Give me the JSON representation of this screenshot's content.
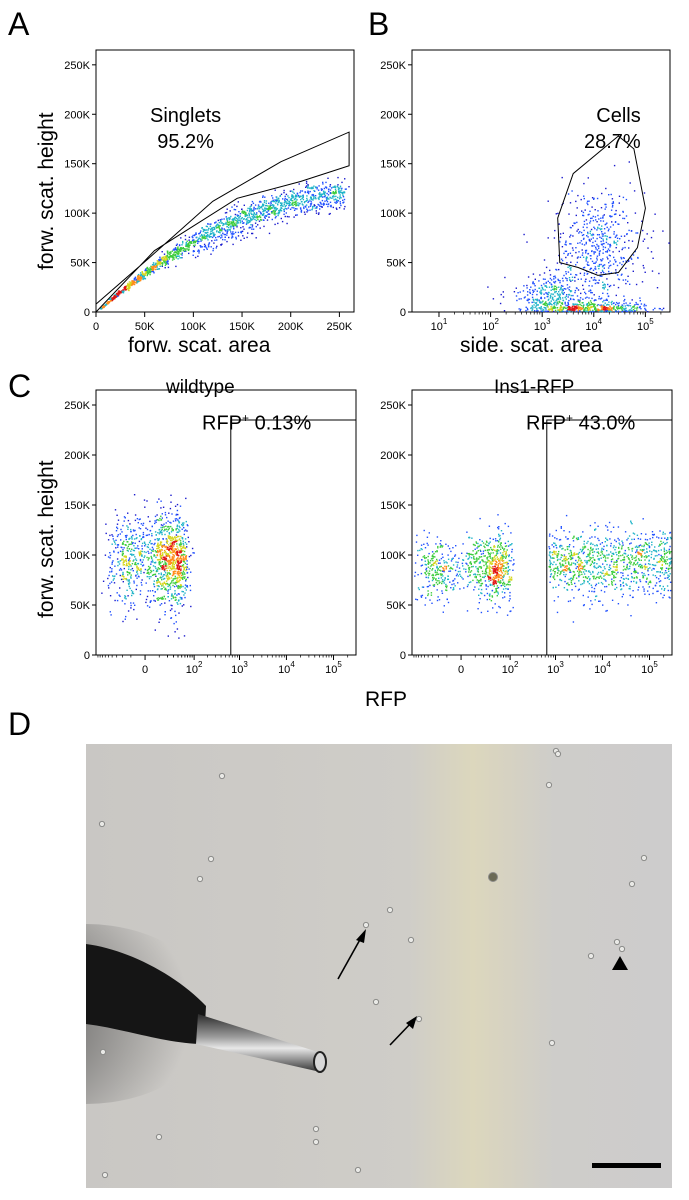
{
  "panel_labels": {
    "a": "A",
    "b": "B",
    "c": "C",
    "d": "D"
  },
  "shared_axis_label": "RFP",
  "chart_data": [
    {
      "id": "A",
      "type": "scatter",
      "title": "",
      "xlabel": "forw. scat. area",
      "ylabel": "forw. scat. height",
      "x_scale": "linear",
      "xlim": [
        0,
        265000
      ],
      "ylim": [
        0,
        265000
      ],
      "x_ticks": [
        0,
        50000,
        100000,
        150000,
        200000,
        250000
      ],
      "x_tick_labels": [
        "0",
        "50K",
        "100K",
        "150K",
        "200K",
        "250K"
      ],
      "y_ticks": [
        0,
        50000,
        100000,
        150000,
        200000,
        250000
      ],
      "y_tick_labels": [
        "0",
        "50K",
        "100K",
        "150K",
        "200K",
        "250K"
      ],
      "gate": {
        "name": "Singlets",
        "percent": "95.2%",
        "polygon": [
          [
            0,
            0
          ],
          [
            60000,
            62000
          ],
          [
            145000,
            115000
          ],
          [
            210000,
            132000
          ],
          [
            260000,
            148000
          ],
          [
            260000,
            182000
          ],
          [
            190000,
            152000
          ],
          [
            120000,
            112000
          ],
          [
            55000,
            55000
          ],
          [
            0,
            8000
          ]
        ]
      },
      "populations": [
        {
          "shape": "band",
          "x_range": [
            4000,
            255000
          ],
          "slope": 0.88,
          "curve": 1.6e-06,
          "spread": 0.06,
          "count": 1600
        },
        {
          "shape": "band",
          "x_range": [
            100000,
            260000
          ],
          "slope": 0.64,
          "curve": 6e-07,
          "spread": 0.05,
          "count": 120
        }
      ]
    },
    {
      "id": "B",
      "type": "scatter",
      "title": "",
      "xlabel": "side. scat. area",
      "ylabel": "",
      "x_scale": "log",
      "xlim": [
        3,
        300000
      ],
      "ylim": [
        0,
        265000
      ],
      "x_ticks": [
        10,
        100,
        1000,
        10000,
        100000
      ],
      "x_tick_labels": [
        "10",
        "10",
        "10",
        "10",
        "10"
      ],
      "x_tick_exponents": [
        "1",
        "2",
        "3",
        "4",
        "5"
      ],
      "y_ticks": [
        0,
        50000,
        100000,
        150000,
        200000,
        250000
      ],
      "y_tick_labels": [
        "0",
        "50K",
        "100K",
        "150K",
        "200K",
        "250K"
      ],
      "gate": {
        "name": "Cells",
        "percent": "28.7%",
        "polygon": [
          [
            2200,
            50000
          ],
          [
            2000,
            95000
          ],
          [
            4000,
            140000
          ],
          [
            30000,
            178000
          ],
          [
            60000,
            165000
          ],
          [
            100000,
            105000
          ],
          [
            70000,
            65000
          ],
          [
            30000,
            40000
          ],
          [
            12000,
            37000
          ],
          [
            5000,
            45000
          ]
        ]
      },
      "populations": [
        {
          "shape": "blob",
          "center": [
            8000,
            3000
          ],
          "sd": [
            0.55,
            4000
          ],
          "count": 650
        },
        {
          "shape": "blob",
          "center": [
            12000,
            65000
          ],
          "sd": [
            0.45,
            30000
          ],
          "count": 550
        },
        {
          "shape": "blob",
          "center": [
            1500,
            18000
          ],
          "sd": [
            0.45,
            10000
          ],
          "count": 300
        }
      ]
    },
    {
      "id": "C-wildtype",
      "type": "scatter",
      "title": "wildtype",
      "xlabel": "RFP",
      "ylabel": "forw. scat. height",
      "x_scale": "biexponential",
      "xlim": [
        -100,
        300000
      ],
      "ylim": [
        0,
        265000
      ],
      "x_ticks": [
        0,
        100,
        1000,
        10000,
        100000
      ],
      "x_tick_labels": [
        "0",
        "10",
        "10",
        "10",
        "10"
      ],
      "x_tick_exponents": [
        "",
        "2",
        "3",
        "4",
        "5"
      ],
      "y_ticks": [
        0,
        50000,
        100000,
        150000,
        200000,
        250000
      ],
      "y_tick_labels": [
        "0",
        "50K",
        "100K",
        "150K",
        "200K",
        "250K"
      ],
      "gate": {
        "name": "RFP",
        "sup": "+",
        "percent": "0.13%",
        "x_from": 650
      },
      "populations": [
        {
          "shape": "blob",
          "center": [
            15,
            95000
          ],
          "sd": [
            25,
            22000
          ],
          "count": 1300
        }
      ]
    },
    {
      "id": "C-Ins1-RFP",
      "type": "scatter",
      "title": "Ins1-RFP",
      "xlabel": "RFP",
      "ylabel": "",
      "x_scale": "biexponential",
      "xlim": [
        -100,
        300000
      ],
      "ylim": [
        0,
        265000
      ],
      "x_ticks": [
        0,
        100,
        1000,
        10000,
        100000
      ],
      "x_tick_labels": [
        "0",
        "10",
        "10",
        "10",
        "10"
      ],
      "x_tick_exponents": [
        "",
        "2",
        "3",
        "4",
        "5"
      ],
      "y_ticks": [
        0,
        50000,
        100000,
        150000,
        200000,
        250000
      ],
      "y_tick_labels": [
        "0",
        "50K",
        "100K",
        "150K",
        "200K",
        "250K"
      ],
      "gate": {
        "name": "RFP",
        "sup": "+",
        "percent": "43.0%",
        "x_from": 650
      },
      "populations": [
        {
          "shape": "blob",
          "center": [
            20,
            88000
          ],
          "sd": [
            40,
            16000
          ],
          "count": 850
        },
        {
          "shape": "uniform_log",
          "x_range": [
            700,
            300000
          ],
          "y_center": 92000,
          "y_sd": 17000,
          "count": 1000
        }
      ]
    }
  ],
  "micrograph": {
    "description_markers": [
      "arrow",
      "arrow",
      "arrowhead"
    ],
    "scale_bar": true
  }
}
